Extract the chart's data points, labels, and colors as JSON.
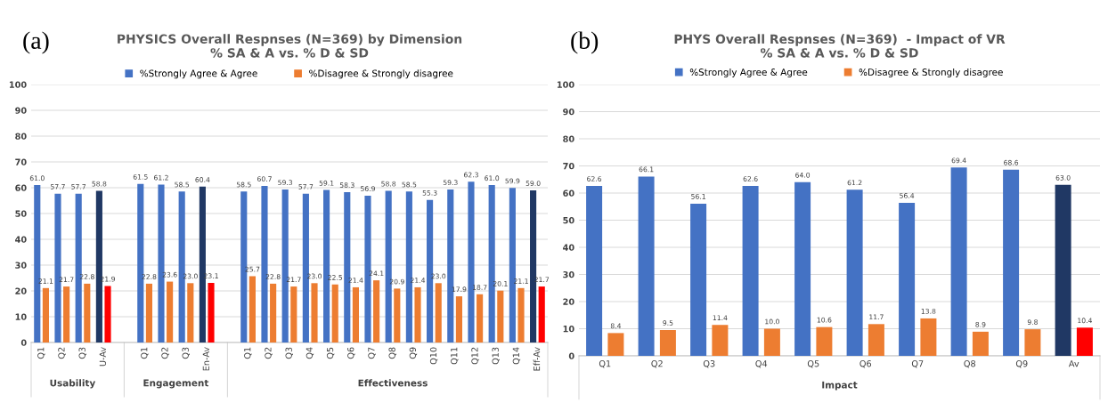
{
  "chart_data": [
    {
      "type": "bar",
      "title": "PHYSICS Overall Respnses (N=369) by Dimension\n% SA & A vs. % D & SD",
      "categories": [
        "Q1",
        "Q2",
        "Q3",
        "U-Av",
        null,
        "Q1",
        "Q2",
        "Q3",
        "En-Av",
        null,
        "Q1",
        "Q2",
        "Q3",
        "Q4",
        "Q5",
        "Q6",
        "Q7",
        "Q8",
        "Q9",
        "Q10",
        "Q11",
        "Q12",
        "Q13",
        "Q14",
        "Eff-Av"
      ],
      "series": [
        {
          "name": "%Strongly Agree & Agree",
          "color": "#4472c4",
          "colors": [
            "#4472c4",
            "#4472c4",
            "#4472c4",
            "#203864",
            null,
            "#4472c4",
            "#4472c4",
            "#4472c4",
            "#203864",
            null,
            "#4472c4",
            "#4472c4",
            "#4472c4",
            "#4472c4",
            "#4472c4",
            "#4472c4",
            "#4472c4",
            "#4472c4",
            "#4472c4",
            "#4472c4",
            "#4472c4",
            "#4472c4",
            "#4472c4",
            "#4472c4",
            "#203864"
          ],
          "values": [
            61.0,
            57.7,
            57.7,
            58.8,
            null,
            61.5,
            61.2,
            58.5,
            60.4,
            null,
            58.5,
            60.7,
            59.3,
            57.7,
            59.1,
            58.3,
            56.9,
            58.8,
            58.5,
            55.3,
            59.3,
            62.3,
            61.0,
            59.9,
            59.0
          ],
          "value_labels": [
            "61.0",
            "57.7",
            "57.7",
            "58.8",
            null,
            "61.5",
            "61.2",
            "58.5",
            "60.4",
            null,
            "58.5",
            "60.7",
            "59.3",
            "57.7",
            "59.1",
            "58.3",
            "56.9",
            "58.8",
            "58.5",
            "55.3",
            "59.3",
            "62.3",
            "61.0",
            "59.9",
            "59.0"
          ]
        },
        {
          "name": "%Disagree & Strongly disagree",
          "color": "#ed7d31",
          "colors": [
            "#ed7d31",
            "#ed7d31",
            "#ed7d31",
            "#ff0000",
            null,
            "#ed7d31",
            "#ed7d31",
            "#ed7d31",
            "#ff0000",
            null,
            "#ed7d31",
            "#ed7d31",
            "#ed7d31",
            "#ed7d31",
            "#ed7d31",
            "#ed7d31",
            "#ed7d31",
            "#ed7d31",
            "#ed7d31",
            "#ed7d31",
            "#ed7d31",
            "#ed7d31",
            "#ed7d31",
            "#ed7d31",
            "#ff0000"
          ],
          "values": [
            21.1,
            21.7,
            22.8,
            21.9,
            null,
            22.8,
            23.6,
            23.0,
            23.1,
            null,
            25.7,
            22.8,
            21.7,
            23.0,
            22.5,
            21.4,
            24.1,
            20.9,
            21.4,
            23.0,
            17.9,
            18.7,
            20.1,
            21.1,
            21.7
          ],
          "value_labels": [
            "21.1",
            "21.7",
            "22.8",
            "21.9",
            null,
            "22.8",
            "23.6",
            "23.0",
            "23.1",
            null,
            "25.7",
            "22.8",
            "21.7",
            "23.0",
            "22.5",
            "21.4",
            "24.1",
            "20.9",
            "21.4",
            "23.0",
            "17.9",
            "18.7",
            "20.1",
            "21.1",
            "21.7"
          ]
        }
      ],
      "ylim": [
        0,
        100
      ],
      "yticks": [
        0,
        10,
        20,
        30,
        40,
        50,
        60,
        70,
        80,
        90,
        100
      ],
      "grid": "y",
      "legend": "top",
      "annotations": [
        "(a)",
        "Usability",
        "Engagement",
        "Effectiveness"
      ]
    },
    {
      "type": "bar",
      "title": "PHYS Overall Respnses (N=369)  - Impact of VR\n% SA & A vs. % D & SD",
      "categories": [
        "Q1",
        "Q2",
        "Q3",
        "Q4",
        "Q5",
        "Q6",
        "Q7",
        "Q8",
        "Q9",
        "Av"
      ],
      "series": [
        {
          "name": "%Strongly Agree & Agree",
          "color": "#4472c4",
          "colors": [
            "#4472c4",
            "#4472c4",
            "#4472c4",
            "#4472c4",
            "#4472c4",
            "#4472c4",
            "#4472c4",
            "#4472c4",
            "#4472c4",
            "#203864"
          ],
          "values": [
            62.6,
            66.1,
            56.1,
            62.6,
            64.0,
            61.2,
            56.4,
            69.4,
            68.6,
            63.0
          ],
          "value_labels": [
            "62.6",
            "66.1",
            "56.1",
            "62.6",
            "64.0",
            "61.2",
            "56.4",
            "69.4",
            "68.6",
            "63.0"
          ]
        },
        {
          "name": "%Disagree & Strongly disagree",
          "color": "#ed7d31",
          "colors": [
            "#ed7d31",
            "#ed7d31",
            "#ed7d31",
            "#ed7d31",
            "#ed7d31",
            "#ed7d31",
            "#ed7d31",
            "#ed7d31",
            "#ed7d31",
            "#ff0000"
          ],
          "values": [
            8.4,
            9.5,
            11.4,
            10.0,
            10.6,
            11.7,
            13.8,
            8.9,
            9.8,
            10.4
          ],
          "value_labels": [
            "8.4",
            "9.5",
            "11.4",
            "10.0",
            "10.6",
            "11.7",
            "13.8",
            "8.9",
            "9.8",
            "10.4"
          ]
        }
      ],
      "ylim": [
        0,
        100
      ],
      "yticks": [
        0,
        10,
        20,
        30,
        40,
        50,
        60,
        70,
        80,
        90,
        100
      ],
      "grid": "y",
      "legend": "top",
      "annotations": [
        "(b)",
        "Impact"
      ]
    }
  ]
}
